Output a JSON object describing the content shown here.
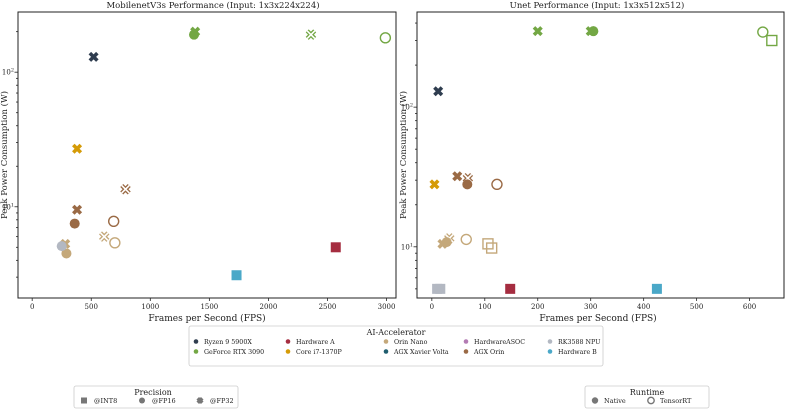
{
  "colors": {
    "ryzen": "#2f3d4f",
    "rtx3090": "#73a744",
    "hardware_a": "#a52d40",
    "i7": "#d59b07",
    "orin_nano": "#c4a87a",
    "xavier_volta": "#1f5d6e",
    "hardware_asoc": "#b37bb3",
    "agx_orin": "#9a6a45",
    "rk3588_npu": "#b3b8c2",
    "hardware_b": "#4aa8c8",
    "legend_marker": "#777777"
  },
  "chart_data": [
    {
      "type": "scatter",
      "title": "MobilenetV3s Performance (Input: 1x3x224x224)",
      "xlabel": "Frames per Second (FPS)",
      "ylabel": "Peak Power Consumption (W)",
      "xscale": "linear",
      "yscale": "log",
      "xlim": [
        -120,
        3080
      ],
      "ylim": [
        2.1,
        280
      ],
      "xticks": [
        0,
        500,
        1000,
        1500,
        2000,
        2500,
        3000
      ],
      "xtick_labels": [
        "0",
        "500",
        "1000",
        "1500",
        "2000",
        "2500",
        "3000"
      ],
      "yticks": [
        10,
        100
      ],
      "points": [
        {
          "device": "ryzen",
          "precision": "FP32",
          "runtime": "Native",
          "x": 520,
          "y": 130
        },
        {
          "device": "rtx3090",
          "precision": "FP32",
          "runtime": "Native",
          "x": 1380,
          "y": 200
        },
        {
          "device": "rtx3090",
          "precision": "FP16",
          "runtime": "Native",
          "x": 1370,
          "y": 190
        },
        {
          "device": "rtx3090",
          "precision": "FP32",
          "runtime": "TensorRT",
          "x": 2360,
          "y": 190
        },
        {
          "device": "rtx3090",
          "precision": "FP16",
          "runtime": "TensorRT",
          "x": 2990,
          "y": 180
        },
        {
          "device": "i7",
          "precision": "FP32",
          "runtime": "Native",
          "x": 380,
          "y": 27
        },
        {
          "device": "hardware_a",
          "precision": "INT8",
          "runtime": "Native",
          "x": 2570,
          "y": 5
        },
        {
          "device": "hardware_b",
          "precision": "INT8",
          "runtime": "Native",
          "x": 1730,
          "y": 3.1
        },
        {
          "device": "agx_orin",
          "precision": "FP32",
          "runtime": "TensorRT",
          "x": 790,
          "y": 13.5
        },
        {
          "device": "agx_orin",
          "precision": "FP32",
          "runtime": "Native",
          "x": 380,
          "y": 9.5
        },
        {
          "device": "agx_orin",
          "precision": "FP16",
          "runtime": "TensorRT",
          "x": 690,
          "y": 7.8
        },
        {
          "device": "agx_orin",
          "precision": "FP16",
          "runtime": "Native",
          "x": 360,
          "y": 7.5
        },
        {
          "device": "orin_nano",
          "precision": "FP32",
          "runtime": "TensorRT",
          "x": 610,
          "y": 6
        },
        {
          "device": "orin_nano",
          "precision": "FP16",
          "runtime": "TensorRT",
          "x": 700,
          "y": 5.4
        },
        {
          "device": "orin_nano",
          "precision": "FP32",
          "runtime": "Native",
          "x": 280,
          "y": 5.3
        },
        {
          "device": "orin_nano",
          "precision": "FP16",
          "runtime": "Native",
          "x": 290,
          "y": 4.5
        },
        {
          "device": "rk3588_npu",
          "precision": "FP16",
          "runtime": "Native",
          "x": 250,
          "y": 5.1
        }
      ]
    },
    {
      "type": "scatter",
      "title": "Unet Performance (Input: 1x3x512x512)",
      "xlabel": "Frames per Second (FPS)",
      "ylabel": "Peak Power Consumption (W)",
      "xscale": "linear",
      "yscale": "log",
      "xlim": [
        -28,
        665
      ],
      "ylim": [
        4.3,
        480
      ],
      "xticks": [
        0,
        100,
        200,
        300,
        400,
        500,
        600
      ],
      "xtick_labels": [
        "0",
        "100",
        "200",
        "300",
        "400",
        "500",
        "600"
      ],
      "yticks": [
        10,
        100
      ],
      "points": [
        {
          "device": "ryzen",
          "precision": "FP32",
          "runtime": "Native",
          "x": 12,
          "y": 130
        },
        {
          "device": "rtx3090",
          "precision": "FP32",
          "runtime": "Native",
          "x": 200,
          "y": 350
        },
        {
          "device": "rtx3090",
          "precision": "FP32",
          "runtime": "Native",
          "x": 300,
          "y": 350
        },
        {
          "device": "rtx3090",
          "precision": "FP16",
          "runtime": "Native",
          "x": 305,
          "y": 350
        },
        {
          "device": "rtx3090",
          "precision": "FP16",
          "runtime": "TensorRT",
          "x": 625,
          "y": 345
        },
        {
          "device": "rtx3090",
          "precision": "INT8",
          "runtime": "TensorRT",
          "x": 642,
          "y": 300
        },
        {
          "device": "i7",
          "precision": "FP32",
          "runtime": "Native",
          "x": 5,
          "y": 28
        },
        {
          "device": "hardware_a",
          "precision": "INT8",
          "runtime": "Native",
          "x": 148,
          "y": 5
        },
        {
          "device": "hardware_b",
          "precision": "INT8",
          "runtime": "Native",
          "x": 425,
          "y": 5
        },
        {
          "device": "agx_orin",
          "precision": "FP32",
          "runtime": "Native",
          "x": 48,
          "y": 32
        },
        {
          "device": "agx_orin",
          "precision": "FP32",
          "runtime": "TensorRT",
          "x": 68,
          "y": 31
        },
        {
          "device": "agx_orin",
          "precision": "FP16",
          "runtime": "Native",
          "x": 67,
          "y": 28
        },
        {
          "device": "agx_orin",
          "precision": "FP16",
          "runtime": "TensorRT",
          "x": 123,
          "y": 28
        },
        {
          "device": "orin_nano",
          "precision": "FP32",
          "runtime": "TensorRT",
          "x": 33,
          "y": 11.5
        },
        {
          "device": "orin_nano",
          "precision": "FP16",
          "runtime": "TensorRT",
          "x": 65,
          "y": 11.3
        },
        {
          "device": "orin_nano",
          "precision": "INT8",
          "runtime": "TensorRT",
          "x": 106,
          "y": 10.5
        },
        {
          "device": "orin_nano",
          "precision": "INT8",
          "runtime": "TensorRT",
          "x": 113,
          "y": 9.8
        },
        {
          "device": "orin_nano",
          "precision": "FP32",
          "runtime": "Native",
          "x": 20,
          "y": 10.5
        },
        {
          "device": "orin_nano",
          "precision": "FP16",
          "runtime": "Native",
          "x": 28,
          "y": 10.8
        },
        {
          "device": "rk3588_npu",
          "precision": "INT8",
          "runtime": "Native",
          "x": 10,
          "y": 5
        },
        {
          "device": "rk3588_npu",
          "precision": "INT8",
          "runtime": "Native",
          "x": 16,
          "y": 5
        }
      ]
    }
  ],
  "legend_accelerator": {
    "title": "AI-Accelerator",
    "items": [
      {
        "key": "ryzen",
        "label": "Ryzen 9 5900X"
      },
      {
        "key": "rtx3090",
        "label": "GeForce RTX 3090"
      },
      {
        "key": "hardware_a",
        "label": "Hardware A"
      },
      {
        "key": "i7",
        "label": "Core i7-1370P"
      },
      {
        "key": "orin_nano",
        "label": "Orin Nano"
      },
      {
        "key": "xavier_volta",
        "label": "AGX Xavier Volta"
      },
      {
        "key": "hardware_asoc",
        "label": "HardwareASOC"
      },
      {
        "key": "agx_orin",
        "label": "AGX Orin"
      },
      {
        "key": "rk3588_npu",
        "label": "RK3588 NPU"
      },
      {
        "key": "hardware_b",
        "label": "Hardware B"
      }
    ]
  },
  "legend_precision": {
    "title": "Precision",
    "items": [
      {
        "key": "INT8",
        "label": "@INT8"
      },
      {
        "key": "FP16",
        "label": "@FP16"
      },
      {
        "key": "FP32",
        "label": "@FP32"
      }
    ]
  },
  "legend_runtime": {
    "title": "Runtime",
    "items": [
      {
        "key": "Native",
        "label": "Native"
      },
      {
        "key": "TensorRT",
        "label": "TensorRT"
      }
    ]
  }
}
